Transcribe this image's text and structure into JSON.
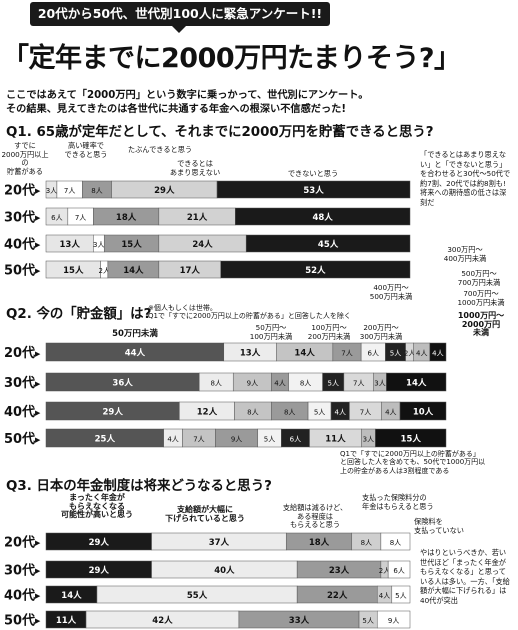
{
  "header": {
    "badge": "20代から50代、世代別100人に緊急アンケート!!",
    "title": "「定年までに2000万円たまりそう?」",
    "lead1": "ここではあえて「2000万円」という数字に乗っかって、世代別にアンケート。",
    "lead2": "その結果、見えてきたのは各世代に共通する年金への根深い不信感だった!"
  },
  "q1": {
    "heading": "Q1. 65歳が定年だとして、それまでに2000万円を貯蓄できると思う?",
    "cat_labels": [
      "すでに\n2000万円以上の\n貯蓄がある",
      "高い確率で\nできると思う",
      "たぶんできると思う",
      "できるとは\nあまり思えない",
      "できないと思う"
    ],
    "side_note": "「できるとはあまり思えない」と「できないと思う」を合わせると30代〜50代で約7割、20代では約8割も!将来への期待感の低さは深刻だ"
  },
  "q2": {
    "heading": "Q2. 今の「貯金額」は?",
    "note": "※個人もしくは世帯。\nQ1で「すでに2000万円以上の貯蓄がある」と回答した人を除く",
    "cat_labels": [
      "50万円未満",
      "50万円〜\n100万円未満",
      "100万円〜\n200万円未満",
      "200万円〜\n300万円未満",
      "300万円〜\n400万円未満",
      "400万円〜\n500万円未満",
      "500万円〜\n700万円未満",
      "700万円〜\n1000万円未満",
      "1000万円〜\n2000万円\n未満"
    ],
    "bottom_note": "Q1で「すでに2000万円以上の貯蓄がある」\nと回答した人を含めても、50代で1000万円以\n上の貯金がある人は3割程度である"
  },
  "q3": {
    "heading": "Q3. 日本の年金制度は将来どうなると思う?",
    "cat_labels": [
      "まったく年金が\nもらえなくなる\n可能性が高いと思う",
      "支給額が大幅に\n下げられていると思う",
      "支給額は減るけど、\nある程度は\nもらえると思う",
      "支払った保険料分の\n年金はもらえると思う",
      "保険料を\n支払っていない"
    ],
    "side_note": "やはりというべきか、若い世代ほど「まったく年金がもらえなくなる」と思っている人は多い。一方、「支給額が大幅に下げられる」は40代が突出"
  },
  "chart_data": [
    {
      "type": "bar",
      "title": "Q1. 65歳が定年だとして、それまでに2000万円を貯蓄できると思う?",
      "categories": [
        "20代",
        "30代",
        "40代",
        "50代"
      ],
      "series": [
        {
          "name": "すでに2000万円以上の貯蓄がある",
          "values": [
            3,
            6,
            13,
            15
          ],
          "color": "#e6e6e6"
        },
        {
          "name": "高い確率でできると思う",
          "values": [
            7,
            7,
            3,
            2
          ],
          "color": "#ffffff"
        },
        {
          "name": "たぶんできると思う",
          "values": [
            8,
            18,
            15,
            14
          ],
          "color": "#9a9a9a"
        },
        {
          "name": "できるとはあまり思えない",
          "values": [
            29,
            21,
            24,
            17
          ],
          "color": "#d2d2d2"
        },
        {
          "name": "できないと思う",
          "values": [
            53,
            48,
            45,
            52
          ],
          "color": "#1a1a1a"
        }
      ],
      "unit": "人"
    },
    {
      "type": "bar",
      "title": "Q2. 今の「貯金額」は?",
      "categories": [
        "20代",
        "30代",
        "40代",
        "50代"
      ],
      "series": [
        {
          "name": "50万円未満",
          "values": [
            44,
            36,
            29,
            25
          ],
          "color": "#555555"
        },
        {
          "name": "50万円〜100万円未満",
          "values": [
            13,
            8,
            12,
            4
          ],
          "color": "#ececec"
        },
        {
          "name": "100万円〜200万円未満",
          "values": [
            14,
            9,
            8,
            7
          ],
          "color": "#c4c4c4"
        },
        {
          "name": "200万円〜300万円未満",
          "values": [
            7,
            4,
            8,
            9
          ],
          "color": "#9a9a9a"
        },
        {
          "name": "300万円〜400万円未満",
          "values": [
            6,
            8,
            5,
            5
          ],
          "color": "#f2f2f2"
        },
        {
          "name": "400万円〜500万円未満",
          "values": [
            5,
            5,
            4,
            6
          ],
          "color": "#222222"
        },
        {
          "name": "500万円〜700万円未満",
          "values": [
            2,
            7,
            7,
            11
          ],
          "color": "#d9d9d9"
        },
        {
          "name": "700万円〜1000万円未満",
          "values": [
            4,
            3,
            4,
            3
          ],
          "color": "#bdbdbd"
        },
        {
          "name": "1000万円〜2000万円未満",
          "values": [
            4,
            14,
            10,
            15
          ],
          "color": "#111111"
        }
      ],
      "unit": "人"
    },
    {
      "type": "bar",
      "title": "Q3. 日本の年金制度は将来どうなると思う?",
      "categories": [
        "20代",
        "30代",
        "40代",
        "50代"
      ],
      "series": [
        {
          "name": "まったく年金がもらえなくなる可能性が高いと思う",
          "values": [
            29,
            29,
            14,
            11
          ],
          "color": "#1a1a1a"
        },
        {
          "name": "支給額が大幅に下げられていると思う",
          "values": [
            37,
            40,
            55,
            42
          ],
          "color": "#ececec"
        },
        {
          "name": "支給額は減るけど、ある程度はもらえると思う",
          "values": [
            18,
            23,
            22,
            33
          ],
          "color": "#9a9a9a"
        },
        {
          "name": "支払った保険料分の年金はもらえると思う",
          "values": [
            8,
            2,
            4,
            5
          ],
          "color": "#cfcfcf"
        },
        {
          "name": "保険料を支払っていない",
          "values": [
            8,
            6,
            5,
            9
          ],
          "color": "#ffffff"
        }
      ],
      "unit": "人"
    }
  ]
}
